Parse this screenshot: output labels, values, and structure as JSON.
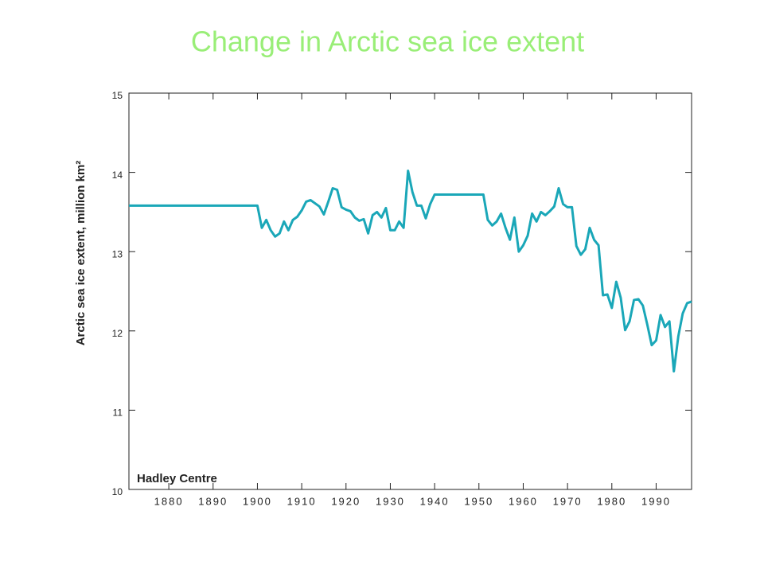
{
  "chart_data": {
    "type": "line",
    "title": "Change in Arctic sea ice extent",
    "y_label": "Arctic sea ice extent, million km²",
    "annotation": "Hadley Centre",
    "color": "#1aa7b8",
    "x": [
      1871,
      1872,
      1873,
      1874,
      1875,
      1876,
      1877,
      1878,
      1879,
      1880,
      1881,
      1882,
      1883,
      1884,
      1885,
      1886,
      1887,
      1888,
      1889,
      1890,
      1891,
      1892,
      1893,
      1894,
      1895,
      1896,
      1897,
      1898,
      1899,
      1900,
      1901,
      1902,
      1903,
      1904,
      1905,
      1906,
      1907,
      1908,
      1909,
      1910,
      1911,
      1912,
      1913,
      1914,
      1915,
      1916,
      1917,
      1918,
      1919,
      1920,
      1921,
      1922,
      1923,
      1924,
      1925,
      1926,
      1927,
      1928,
      1929,
      1930,
      1931,
      1932,
      1933,
      1934,
      1935,
      1936,
      1937,
      1938,
      1939,
      1940,
      1941,
      1942,
      1943,
      1944,
      1945,
      1946,
      1947,
      1948,
      1949,
      1950,
      1951,
      1952,
      1953,
      1954,
      1955,
      1956,
      1957,
      1958,
      1959,
      1960,
      1961,
      1962,
      1963,
      1964,
      1965,
      1966,
      1967,
      1968,
      1969,
      1970,
      1971,
      1972,
      1973,
      1974,
      1975,
      1976,
      1977,
      1978,
      1979,
      1980,
      1981,
      1982,
      1983,
      1984,
      1985,
      1986,
      1987,
      1988,
      1989,
      1990,
      1991,
      1992,
      1993,
      1994,
      1995,
      1996,
      1997,
      1998
    ],
    "values": [
      13.58,
      13.58,
      13.58,
      13.58,
      13.58,
      13.58,
      13.58,
      13.58,
      13.58,
      13.58,
      13.58,
      13.58,
      13.58,
      13.58,
      13.58,
      13.58,
      13.58,
      13.58,
      13.58,
      13.58,
      13.58,
      13.58,
      13.58,
      13.58,
      13.58,
      13.58,
      13.58,
      13.58,
      13.58,
      13.58,
      13.3,
      13.4,
      13.27,
      13.19,
      13.23,
      13.38,
      13.27,
      13.4,
      13.44,
      13.52,
      13.63,
      13.65,
      13.61,
      13.57,
      13.47,
      13.63,
      13.8,
      13.78,
      13.56,
      13.53,
      13.51,
      13.43,
      13.39,
      13.41,
      13.23,
      13.46,
      13.5,
      13.43,
      13.55,
      13.27,
      13.27,
      13.38,
      13.3,
      14.02,
      13.75,
      13.58,
      13.58,
      13.42,
      13.6,
      13.72,
      13.72,
      13.72,
      13.72,
      13.72,
      13.72,
      13.72,
      13.72,
      13.72,
      13.72,
      13.72,
      13.72,
      13.4,
      13.33,
      13.38,
      13.48,
      13.3,
      13.15,
      13.43,
      13.0,
      13.08,
      13.2,
      13.48,
      13.38,
      13.5,
      13.46,
      13.51,
      13.57,
      13.8,
      13.6,
      13.56,
      13.56,
      13.07,
      12.96,
      13.03,
      13.3,
      13.15,
      13.08,
      12.45,
      12.46,
      12.29,
      12.62,
      12.42,
      12.01,
      12.12,
      12.39,
      12.4,
      12.32,
      12.08,
      11.82,
      11.88,
      12.2,
      12.05,
      12.12,
      11.49,
      11.93,
      12.22,
      12.35,
      12.37
    ],
    "xlim": [
      1871,
      1998
    ],
    "xticks": [
      1880,
      1890,
      1900,
      1910,
      1920,
      1930,
      1940,
      1950,
      1960,
      1970,
      1980,
      1990
    ],
    "ylim": [
      10,
      15
    ],
    "yticks": [
      10,
      11,
      12,
      13,
      14,
      15
    ]
  }
}
